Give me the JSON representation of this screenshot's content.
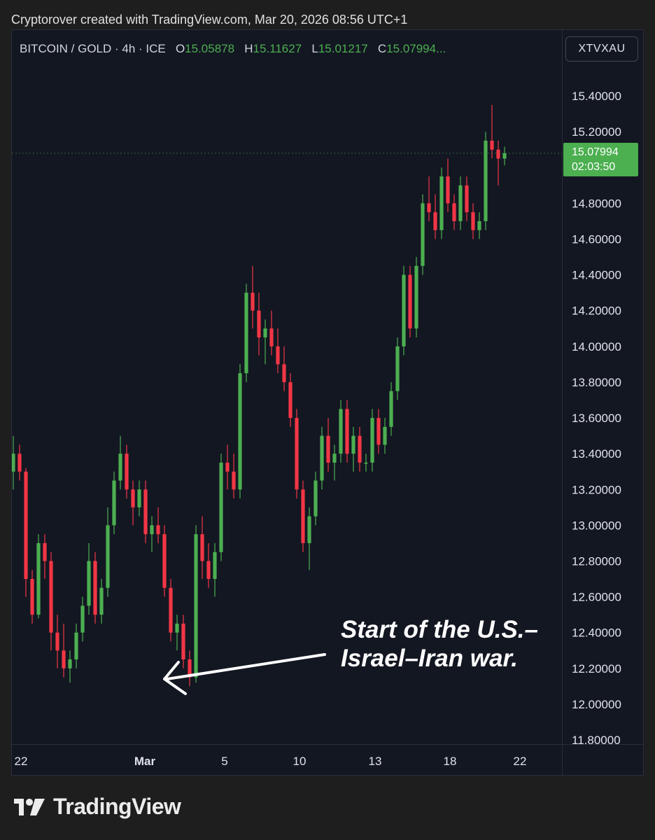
{
  "caption": "Cryptorover created with TradingView.com, Mar 20, 2026 08:56 UTC+1",
  "legend": {
    "symbol": "BITCOIN / GOLD · 4h · ICE",
    "o_label": "O",
    "o_value": "15.05878",
    "h_label": "H",
    "h_value": "15.11627",
    "l_label": "L",
    "l_value": "15.01217",
    "c_label": "C",
    "c_value": "15.07994..."
  },
  "ticker_button": "XTVXAU",
  "price_badge": {
    "price": "15.07994",
    "countdown": "02:03:50"
  },
  "annotation": {
    "line1": "Start of the U.S.–",
    "line2": "Israel–Iran war."
  },
  "brand": {
    "name": "TradingView"
  },
  "colors": {
    "up": "#4caf50",
    "down": "#f23645",
    "background": "#131722",
    "axis_text": "#e0e3eb"
  },
  "chart_data": {
    "type": "candlestick",
    "interval": "4h",
    "ylim": [
      11.8,
      15.6
    ],
    "y_ticks": [
      "11.80000",
      "12.00000",
      "12.20000",
      "12.40000",
      "12.60000",
      "12.80000",
      "13.00000",
      "13.20000",
      "13.40000",
      "13.60000",
      "13.80000",
      "14.00000",
      "14.20000",
      "14.40000",
      "14.60000",
      "14.80000",
      "15.00000",
      "15.20000",
      "15.40000"
    ],
    "x_ticks": [
      "22",
      "Mar",
      "5",
      "10",
      "13",
      "18",
      "22"
    ],
    "last_price": 15.07994,
    "candles_ohlc": [
      [
        13.3,
        13.5,
        13.2,
        13.4
      ],
      [
        13.4,
        13.45,
        13.25,
        13.3
      ],
      [
        13.3,
        13.32,
        12.6,
        12.7
      ],
      [
        12.7,
        12.75,
        12.45,
        12.5
      ],
      [
        12.5,
        12.95,
        12.48,
        12.9
      ],
      [
        12.9,
        12.95,
        12.7,
        12.8
      ],
      [
        12.8,
        12.85,
        12.3,
        12.4
      ],
      [
        12.4,
        12.5,
        12.2,
        12.3
      ],
      [
        12.3,
        12.45,
        12.15,
        12.2
      ],
      [
        12.2,
        12.3,
        12.12,
        12.25
      ],
      [
        12.25,
        12.45,
        12.2,
        12.4
      ],
      [
        12.4,
        12.6,
        12.35,
        12.55
      ],
      [
        12.55,
        12.9,
        12.5,
        12.8
      ],
      [
        12.8,
        12.85,
        12.45,
        12.5
      ],
      [
        12.5,
        12.7,
        12.45,
        12.65
      ],
      [
        12.65,
        13.1,
        12.6,
        13.0
      ],
      [
        13.0,
        13.3,
        12.95,
        13.25
      ],
      [
        13.25,
        13.5,
        13.2,
        13.4
      ],
      [
        13.4,
        13.45,
        13.15,
        13.2
      ],
      [
        13.2,
        13.25,
        13.0,
        13.1
      ],
      [
        13.1,
        13.25,
        13.05,
        13.2
      ],
      [
        13.2,
        13.25,
        12.9,
        12.95
      ],
      [
        12.95,
        13.05,
        12.85,
        13.0
      ],
      [
        13.0,
        13.1,
        12.9,
        12.95
      ],
      [
        12.95,
        13.0,
        12.6,
        12.65
      ],
      [
        12.65,
        12.7,
        12.35,
        12.4
      ],
      [
        12.4,
        12.5,
        12.3,
        12.45
      ],
      [
        12.45,
        12.5,
        12.2,
        12.25
      ],
      [
        12.25,
        12.3,
        12.1,
        12.15
      ],
      [
        12.15,
        13.0,
        12.12,
        12.95
      ],
      [
        12.95,
        13.05,
        12.7,
        12.8
      ],
      [
        12.8,
        12.9,
        12.65,
        12.7
      ],
      [
        12.7,
        12.9,
        12.6,
        12.85
      ],
      [
        12.85,
        13.4,
        12.8,
        13.35
      ],
      [
        13.35,
        13.45,
        13.2,
        13.3
      ],
      [
        13.3,
        13.4,
        13.15,
        13.2
      ],
      [
        13.2,
        13.9,
        13.15,
        13.85
      ],
      [
        13.85,
        14.35,
        13.8,
        14.3
      ],
      [
        14.3,
        14.45,
        14.1,
        14.2
      ],
      [
        14.2,
        14.3,
        13.95,
        14.05
      ],
      [
        14.05,
        14.15,
        13.9,
        14.1
      ],
      [
        14.1,
        14.2,
        13.95,
        14.0
      ],
      [
        14.0,
        14.1,
        13.85,
        13.9
      ],
      [
        13.9,
        14.0,
        13.75,
        13.8
      ],
      [
        13.8,
        13.85,
        13.55,
        13.6
      ],
      [
        13.6,
        13.65,
        13.15,
        13.2
      ],
      [
        13.2,
        13.25,
        12.85,
        12.9
      ],
      [
        12.9,
        13.1,
        12.75,
        13.05
      ],
      [
        13.05,
        13.3,
        13.0,
        13.25
      ],
      [
        13.25,
        13.55,
        13.2,
        13.5
      ],
      [
        13.5,
        13.6,
        13.3,
        13.35
      ],
      [
        13.35,
        13.45,
        13.25,
        13.4
      ],
      [
        13.4,
        13.7,
        13.35,
        13.65
      ],
      [
        13.65,
        13.7,
        13.35,
        13.4
      ],
      [
        13.4,
        13.55,
        13.3,
        13.5
      ],
      [
        13.5,
        13.55,
        13.3,
        13.35
      ],
      [
        13.35,
        13.4,
        13.3,
        13.35
      ],
      [
        13.35,
        13.65,
        13.3,
        13.6
      ],
      [
        13.6,
        13.65,
        13.4,
        13.45
      ],
      [
        13.45,
        13.6,
        13.4,
        13.55
      ],
      [
        13.55,
        13.8,
        13.5,
        13.75
      ],
      [
        13.75,
        14.05,
        13.7,
        14.0
      ],
      [
        14.0,
        14.45,
        13.95,
        14.4
      ],
      [
        14.4,
        14.45,
        14.05,
        14.1
      ],
      [
        14.1,
        14.5,
        14.05,
        14.45
      ],
      [
        14.45,
        14.85,
        14.4,
        14.8
      ],
      [
        14.8,
        14.95,
        14.7,
        14.75
      ],
      [
        14.75,
        14.85,
        14.6,
        14.65
      ],
      [
        14.65,
        15.0,
        14.6,
        14.95
      ],
      [
        14.95,
        15.05,
        14.75,
        14.8
      ],
      [
        14.8,
        14.85,
        14.65,
        14.7
      ],
      [
        14.7,
        14.95,
        14.65,
        14.9
      ],
      [
        14.9,
        14.95,
        14.7,
        14.75
      ],
      [
        14.75,
        14.8,
        14.6,
        14.65
      ],
      [
        14.65,
        14.75,
        14.6,
        14.7
      ],
      [
        14.7,
        15.2,
        14.65,
        15.15
      ],
      [
        15.15,
        15.35,
        15.05,
        15.1
      ],
      [
        15.1,
        15.15,
        14.9,
        15.05
      ],
      [
        15.05,
        15.11627,
        15.01217,
        15.07994
      ]
    ]
  }
}
